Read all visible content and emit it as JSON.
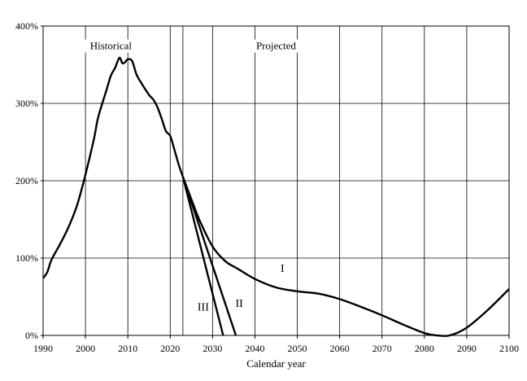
{
  "chart_data": {
    "type": "line",
    "title": "",
    "xlabel": "Calendar year",
    "ylabel": "",
    "xlim": [
      1990,
      2100
    ],
    "ylim": [
      0,
      400
    ],
    "x_ticks": [
      1990,
      2000,
      2010,
      2020,
      2030,
      2040,
      2050,
      2060,
      2070,
      2080,
      2090,
      2100
    ],
    "x_tick_labels": [
      "1990",
      "2000",
      "2010",
      "2020",
      "2030",
      "2040",
      "2050",
      "2060",
      "2070",
      "2080",
      "2090",
      "2100"
    ],
    "y_ticks": [
      0,
      100,
      200,
      300,
      400
    ],
    "y_tick_labels": [
      "0%",
      "100%",
      "200%",
      "300%",
      "400%"
    ],
    "grid": true,
    "annotations": [
      {
        "text": "Historical",
        "x": 2006,
        "y": 370
      },
      {
        "text": "Projected",
        "x": 2045,
        "y": 370
      }
    ],
    "series": [
      {
        "name": "",
        "role": "historical",
        "points": [
          [
            1990,
            74
          ],
          [
            1991,
            82
          ],
          [
            1992,
            98
          ],
          [
            1994,
            118
          ],
          [
            1996,
            140
          ],
          [
            1998,
            168
          ],
          [
            2000,
            208
          ],
          [
            2002,
            254
          ],
          [
            2003,
            282
          ],
          [
            2005,
            318
          ],
          [
            2006,
            336
          ],
          [
            2007,
            346
          ],
          [
            2008,
            359
          ],
          [
            2008.7,
            352
          ],
          [
            2009.3,
            353
          ],
          [
            2010,
            357
          ],
          [
            2011,
            355
          ],
          [
            2012,
            338
          ],
          [
            2013,
            328
          ],
          [
            2015,
            311
          ],
          [
            2016,
            305
          ],
          [
            2017,
            295
          ],
          [
            2018,
            280
          ],
          [
            2019,
            264
          ],
          [
            2020,
            258
          ],
          [
            2021,
            240
          ],
          [
            2022,
            221
          ],
          [
            2023,
            205
          ]
        ]
      },
      {
        "name": "I",
        "points": [
          [
            2023,
            205
          ],
          [
            2025,
            176
          ],
          [
            2027,
            148
          ],
          [
            2030,
            115
          ],
          [
            2033,
            96
          ],
          [
            2036,
            86
          ],
          [
            2040,
            73
          ],
          [
            2045,
            62
          ],
          [
            2050,
            57
          ],
          [
            2055,
            54
          ],
          [
            2060,
            47
          ],
          [
            2065,
            37
          ],
          [
            2070,
            26
          ],
          [
            2075,
            14
          ],
          [
            2080,
            3
          ],
          [
            2083,
            0
          ],
          [
            2086,
            0
          ],
          [
            2090,
            10
          ],
          [
            2095,
            33
          ],
          [
            2100,
            60
          ]
        ]
      },
      {
        "name": "II",
        "points": [
          [
            2023,
            205
          ],
          [
            2035.5,
            0
          ]
        ]
      },
      {
        "name": "III",
        "points": [
          [
            2023,
            205
          ],
          [
            2032.5,
            0
          ]
        ]
      }
    ],
    "series_labels": [
      {
        "text": "I",
        "x": 2046.5,
        "y": 82
      },
      {
        "text": "II",
        "x": 2036.3,
        "y": 37
      },
      {
        "text": "III",
        "x": 2027.8,
        "y": 32
      }
    ],
    "extra_vertical_lines": [
      2023
    ]
  }
}
